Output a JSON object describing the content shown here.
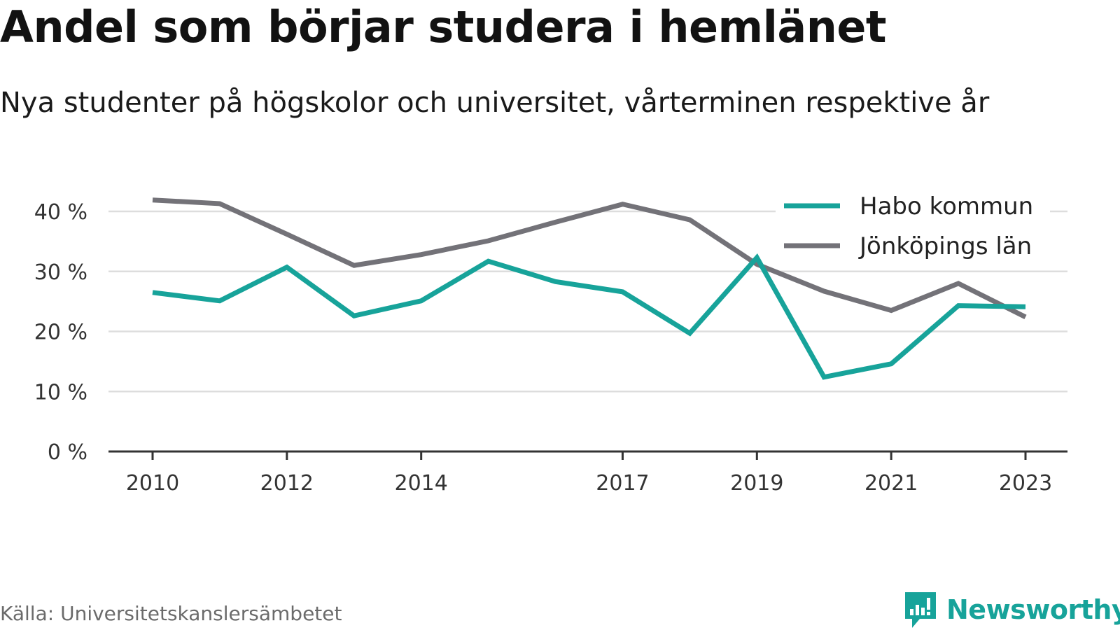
{
  "header": {
    "title": "Andel som börjar studera i hemlänet",
    "subtitle": "Nya studenter på högskolor och universitet, vårterminen respektive år"
  },
  "chart_data": {
    "type": "line",
    "title": "Andel som börjar studera i hemlänet",
    "subtitle": "Nya studenter på högskolor och universitet, vårterminen respektive år",
    "xlabel": "",
    "ylabel": "",
    "x": [
      2010,
      2011,
      2012,
      2013,
      2014,
      2015,
      2016,
      2017,
      2018,
      2019,
      2020,
      2021,
      2022,
      2023
    ],
    "x_tick_labels": [
      "2010",
      "2012",
      "2014",
      "2017",
      "2019",
      "2021",
      "2023"
    ],
    "y_ticks": [
      0,
      10,
      20,
      30,
      40
    ],
    "y_tick_labels": [
      "0 %",
      "10 %",
      "20 %",
      "30 %",
      "40 %"
    ],
    "ylim": [
      0,
      40
    ],
    "grid": "horizontal",
    "legend_position": "top-right",
    "series": [
      {
        "name": "Habo kommun",
        "color": "#17a39a",
        "values": [
          26.5,
          25.1,
          30.7,
          22.6,
          25.1,
          31.7,
          28.3,
          26.6,
          19.7,
          32.3,
          12.4,
          14.6,
          24.3,
          24.1
        ]
      },
      {
        "name": "Jönköpings län",
        "color": "#737278",
        "values": [
          41.9,
          41.3,
          36.2,
          31.0,
          32.8,
          35.1,
          38.2,
          41.2,
          38.6,
          31.2,
          26.7,
          23.5,
          28.0,
          22.4
        ]
      }
    ]
  },
  "footer": {
    "source": "Källa: Universitetskanslersämbetet",
    "brand": "Newsworthy"
  },
  "colors": {
    "accent": "#17a39a",
    "secondary": "#737278",
    "gridline": "#dddddd",
    "axis": "#333333",
    "source_text": "#6b6b6b"
  }
}
